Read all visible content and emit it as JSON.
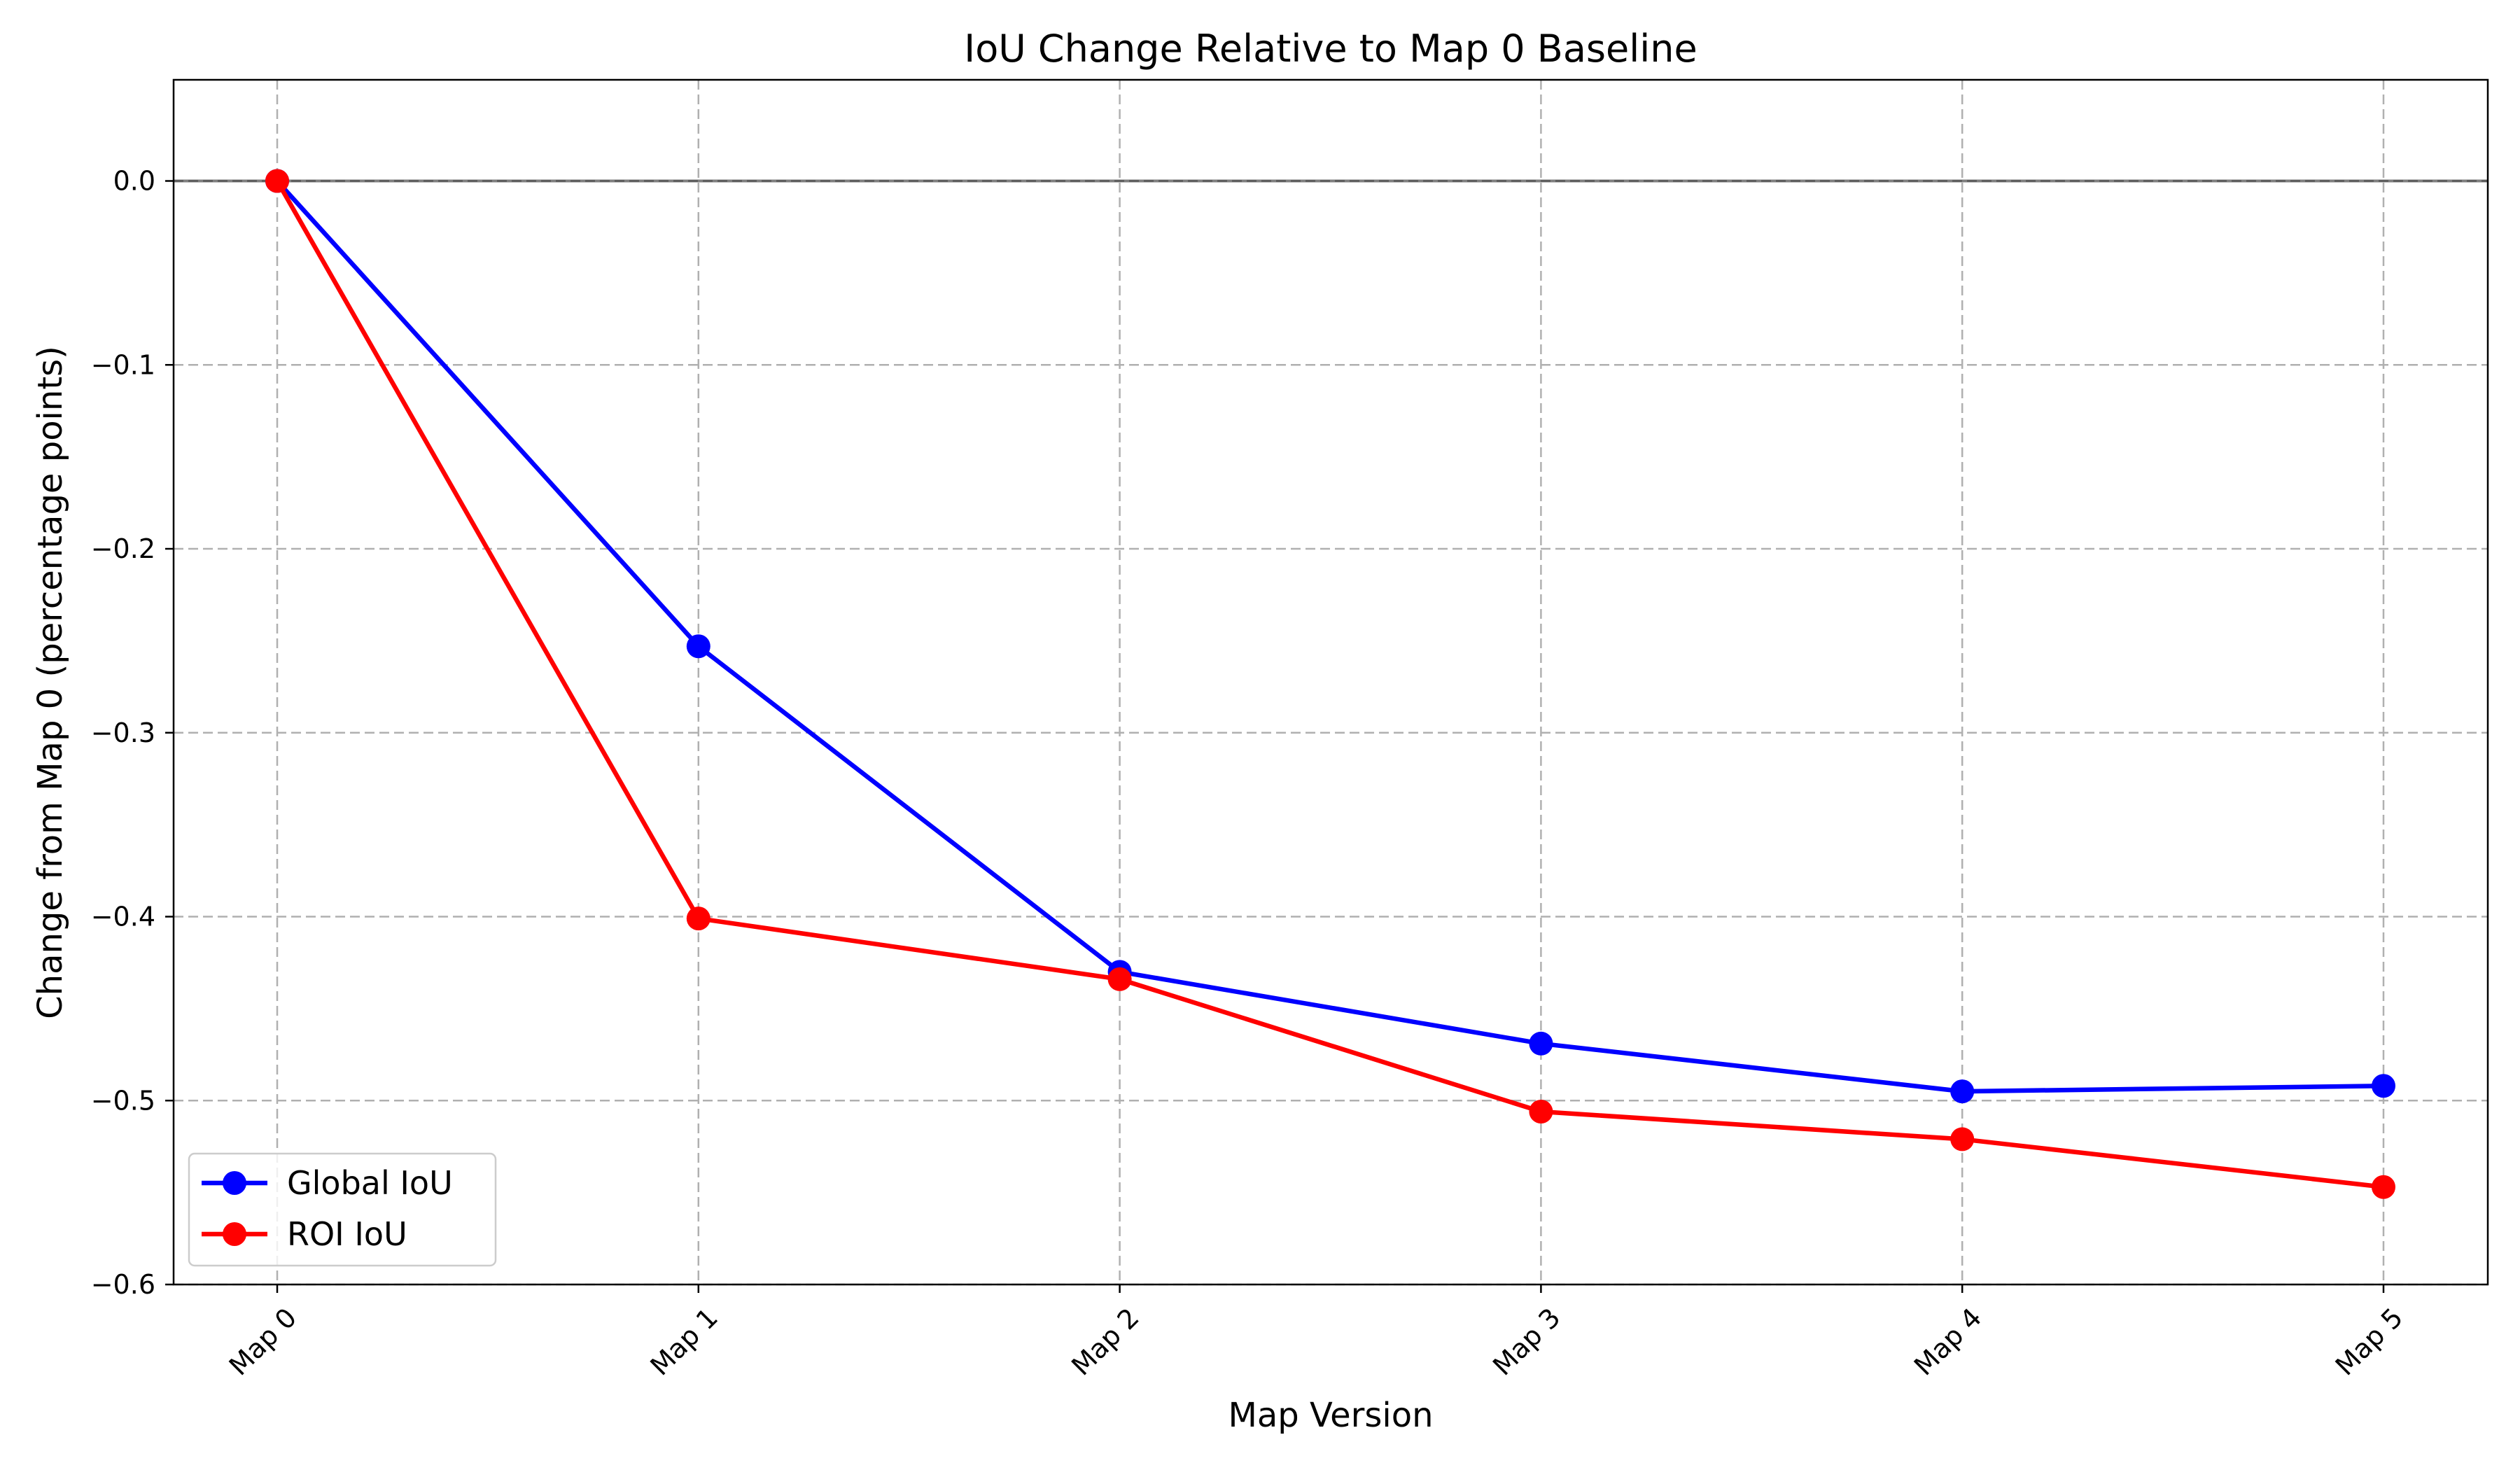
{
  "chart_data": {
    "type": "line",
    "title": "IoU Change Relative to Map 0 Baseline",
    "xlabel": "Map Version",
    "ylabel": "Change from Map 0 (percentage points)",
    "categories": [
      "Map 0",
      "Map 1",
      "Map 2",
      "Map 3",
      "Map 4",
      "Map 5"
    ],
    "series": [
      {
        "name": "Global IoU",
        "color": "#0000ff",
        "marker": "circle",
        "values": [
          0.0,
          -0.253,
          -0.43,
          -0.469,
          -0.495,
          -0.492
        ]
      },
      {
        "name": "ROI IoU",
        "color": "#ff0000",
        "marker": "circle",
        "values": [
          0.0,
          -0.401,
          -0.434,
          -0.506,
          -0.521,
          -0.547
        ]
      }
    ],
    "ylim": [
      -0.6,
      0.055
    ],
    "yticks": [
      0.0,
      -0.1,
      -0.2,
      -0.3,
      -0.4,
      -0.5,
      -0.6
    ],
    "ytick_labels": [
      "0.0",
      "−0.1",
      "−0.2",
      "−0.3",
      "−0.4",
      "−0.5",
      "−0.6"
    ],
    "reference_line": 0.0,
    "grid": true,
    "grid_style": "dashed",
    "legend_position": "lower-left",
    "xtick_rotation_deg": 45
  }
}
